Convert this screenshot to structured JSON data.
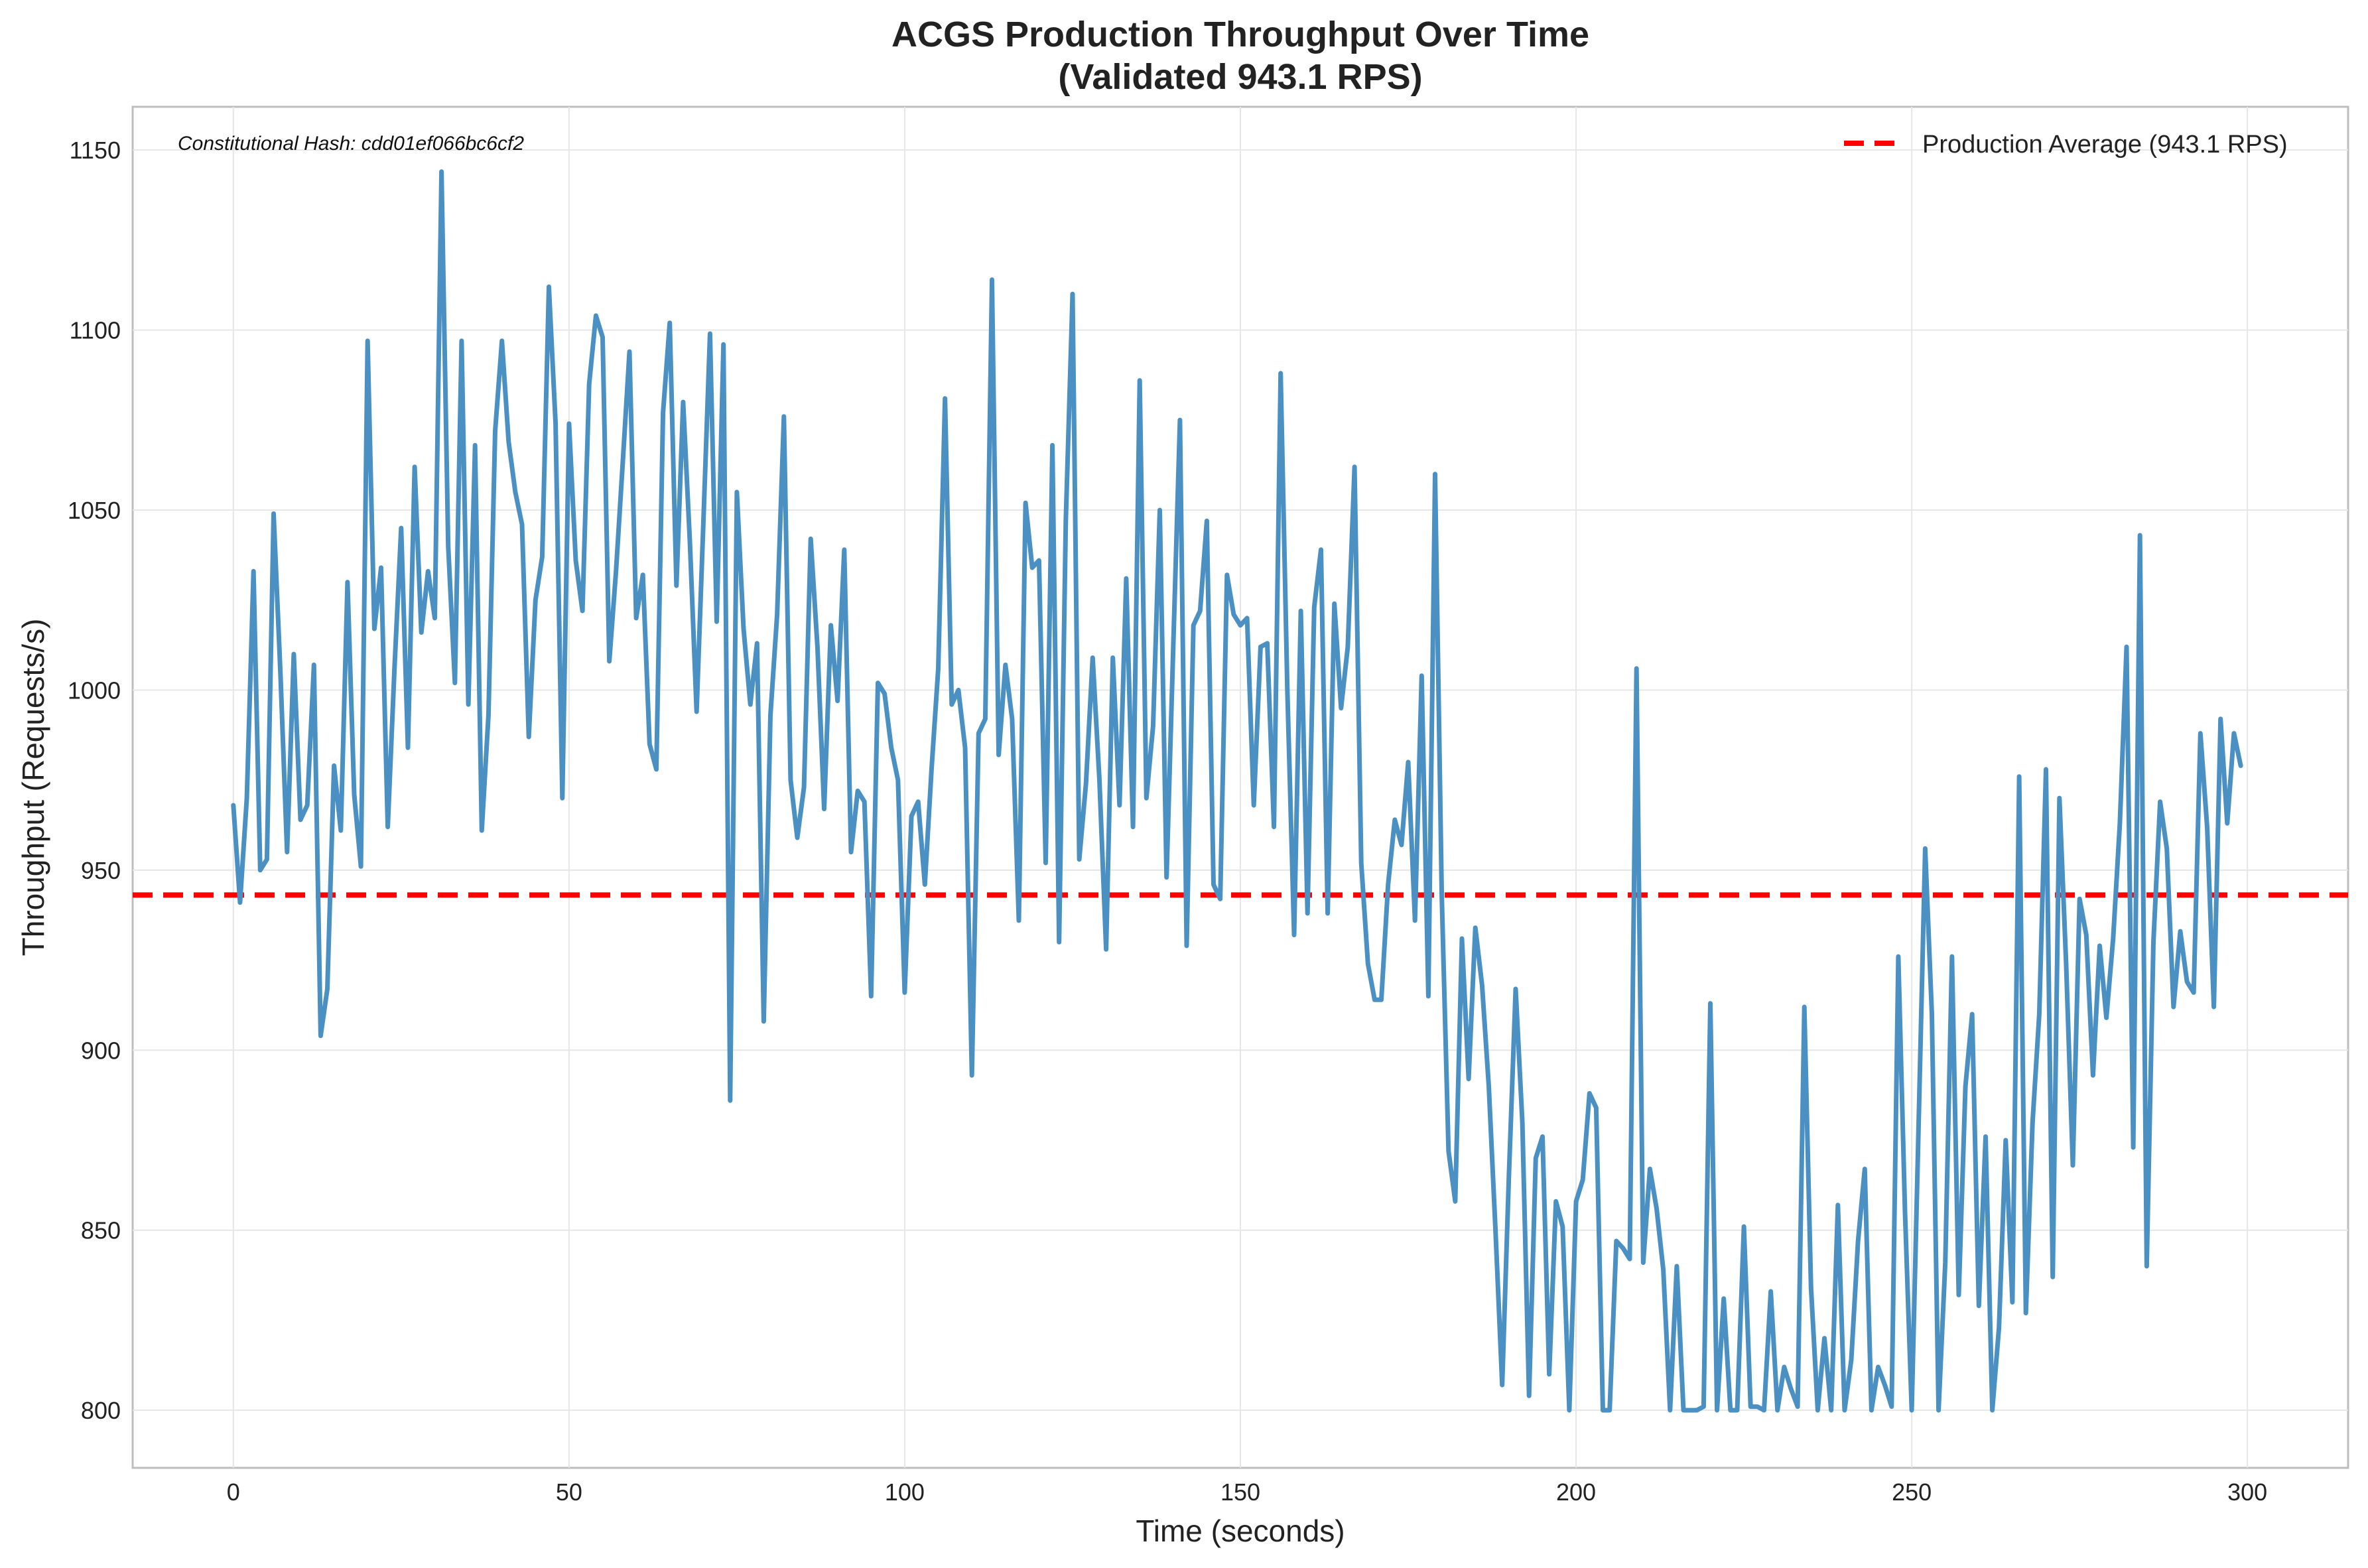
{
  "chart_data": {
    "type": "line",
    "title": "ACGS Production Throughput Over Time",
    "subtitle": "(Validated 943.1 RPS)",
    "xlabel": "Time (seconds)",
    "ylabel": "Throughput (Requests/s)",
    "xlim": [
      -15,
      315
    ],
    "ylim": [
      784,
      1162
    ],
    "x_ticks": [
      0,
      50,
      100,
      150,
      200,
      250,
      300
    ],
    "y_ticks": [
      800,
      850,
      900,
      950,
      1000,
      1050,
      1100,
      1150
    ],
    "grid": true,
    "legend_position": "top-right",
    "annotation": "Constitutional Hash: cdd01ef066bc6cf2",
    "reference_line": {
      "name": "Production Average (943.1 RPS)",
      "y": 943.1,
      "color": "#ff0000",
      "style": "dashed"
    },
    "series": [
      {
        "color": "#4a90c2",
        "x_start": 0,
        "x_step": 1,
        "values": [
          968,
          941,
          970,
          1033,
          950,
          953,
          1049,
          1005,
          955,
          1010,
          964,
          968,
          1007,
          904,
          917,
          979,
          961,
          1030,
          971,
          951,
          1097,
          1017,
          1034,
          962,
          1006,
          1045,
          984,
          1062,
          1016,
          1033,
          1020,
          1144,
          1040,
          1002,
          1097,
          996,
          1068,
          961,
          993,
          1072,
          1097,
          1069,
          1055,
          1046,
          987,
          1025,
          1037,
          1112,
          1074,
          970,
          1074,
          1036,
          1022,
          1085,
          1104,
          1098,
          1008,
          1033,
          1063,
          1094,
          1020,
          1032,
          985,
          978,
          1077,
          1102,
          1029,
          1080,
          1041,
          994,
          1046,
          1099,
          1019,
          1096,
          886,
          1055,
          1017,
          996,
          1013,
          908,
          993,
          1021,
          1076,
          975,
          959,
          973,
          1042,
          1012,
          967,
          1018,
          997,
          1039,
          955,
          972,
          969,
          915,
          1002,
          999,
          984,
          975,
          916,
          965,
          969,
          946,
          978,
          1006,
          1081,
          996,
          1000,
          984,
          893,
          988,
          992,
          1114,
          982,
          1007,
          992,
          936,
          1052,
          1034,
          1036,
          952,
          1068,
          930,
          1047,
          1110,
          953,
          974,
          1009,
          975,
          928,
          1009,
          968,
          1031,
          962,
          1086,
          970,
          990,
          1050,
          948,
          1012,
          1075,
          929,
          1018,
          1022,
          1047,
          946,
          942,
          1032,
          1021,
          1018,
          1020,
          968,
          1012,
          1013,
          962,
          1088,
          1000,
          932,
          1022,
          938,
          1023,
          1039,
          938,
          1024,
          995,
          1012,
          1062,
          952,
          924,
          914,
          914,
          946,
          964,
          957,
          980,
          936,
          1004,
          915,
          1060,
          943,
          872,
          858,
          931,
          892,
          934,
          918,
          890,
          850,
          807,
          865,
          917,
          880,
          804,
          870,
          876,
          810,
          858,
          851,
          800,
          858,
          864,
          888,
          884,
          800,
          800,
          847,
          845,
          842,
          1006,
          841,
          867,
          856,
          839,
          800,
          840,
          800,
          800,
          800,
          801,
          913,
          800,
          831,
          800,
          800,
          851,
          801,
          801,
          800,
          833,
          800,
          812,
          806,
          801,
          912,
          834,
          800,
          820,
          800,
          857,
          800,
          814,
          847,
          867,
          800,
          812,
          807,
          801,
          926,
          855,
          800,
          877,
          956,
          910,
          800,
          841,
          926,
          832,
          890,
          910,
          829,
          876,
          800,
          823,
          875,
          830,
          976,
          827,
          880,
          910,
          978,
          837,
          970,
          924,
          868,
          942,
          932,
          893,
          929,
          909,
          931,
          963,
          1012,
          873,
          1043,
          840,
          930,
          969,
          956,
          912,
          933,
          919,
          916,
          988,
          962,
          912,
          992,
          963,
          988,
          979
        ]
      }
    ]
  }
}
